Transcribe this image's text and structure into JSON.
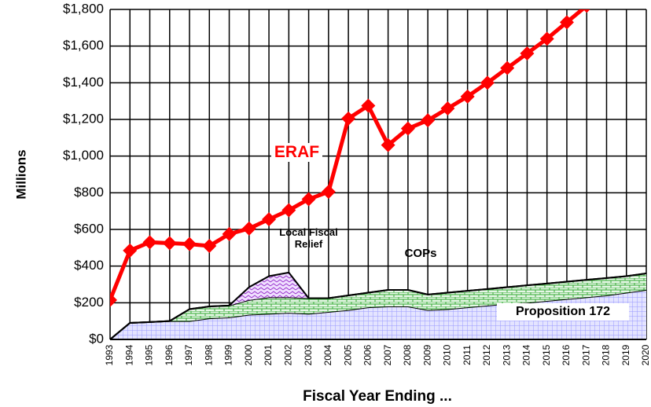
{
  "chart_data": {
    "type": "stacked-area-line",
    "xlabel": "Fiscal Year Ending ...",
    "ylabel": "Millions",
    "categories": [
      "1993",
      "1994",
      "1995",
      "1996",
      "1997",
      "1998",
      "1999",
      "2000",
      "2001",
      "2002",
      "2003",
      "2004",
      "2005",
      "2006",
      "2007",
      "2008",
      "2009",
      "2010",
      "2011",
      "2012",
      "2013",
      "2014",
      "2015",
      "2016",
      "2017",
      "2018",
      "2019",
      "2020"
    ],
    "ylim": [
      0,
      1800
    ],
    "yticks": [
      {
        "value": 0,
        "label": "$0"
      },
      {
        "value": 200,
        "label": "$200"
      },
      {
        "value": 400,
        "label": "$400"
      },
      {
        "value": 600,
        "label": "$600"
      },
      {
        "value": 800,
        "label": "$800"
      },
      {
        "value": 1000,
        "label": "$1,000"
      },
      {
        "value": 1200,
        "label": "$1,200"
      },
      {
        "value": 1400,
        "label": "$1,400"
      },
      {
        "value": 1600,
        "label": "$1,600"
      },
      {
        "value": 1800,
        "label": "$1,800"
      }
    ],
    "grid": true,
    "areas": [
      {
        "name": "Proposition 172",
        "color": "#9999ff",
        "values": [
          0,
          90,
          95,
          100,
          100,
          115,
          120,
          135,
          140,
          145,
          140,
          150,
          160,
          175,
          180,
          180,
          160,
          165,
          175,
          185,
          195,
          200,
          210,
          220,
          230,
          240,
          255,
          270
        ]
      },
      {
        "name": "COPs",
        "color": "#33aa33",
        "values": [
          0,
          0,
          0,
          0,
          65,
          65,
          65,
          80,
          90,
          85,
          85,
          75,
          80,
          80,
          90,
          90,
          85,
          90,
          90,
          90,
          90,
          95,
          95,
          95,
          95,
          95,
          90,
          90
        ]
      },
      {
        "name": "Local Fiscal Relief",
        "color": "#9933cc",
        "values": [
          0,
          0,
          0,
          0,
          0,
          0,
          0,
          70,
          115,
          135,
          0,
          0,
          0,
          0,
          0,
          0,
          0,
          0,
          0,
          0,
          0,
          0,
          0,
          0,
          0,
          0,
          0,
          0
        ]
      }
    ],
    "line": {
      "name": "ERAF",
      "color": "#ff0000",
      "values": [
        215,
        485,
        530,
        525,
        520,
        510,
        575,
        605,
        655,
        705,
        765,
        805,
        1205,
        1275,
        1060,
        1150,
        1195,
        1260,
        1325,
        1400,
        1480,
        1560,
        1640,
        1730,
        1820,
        null,
        null,
        null
      ]
    }
  }
}
